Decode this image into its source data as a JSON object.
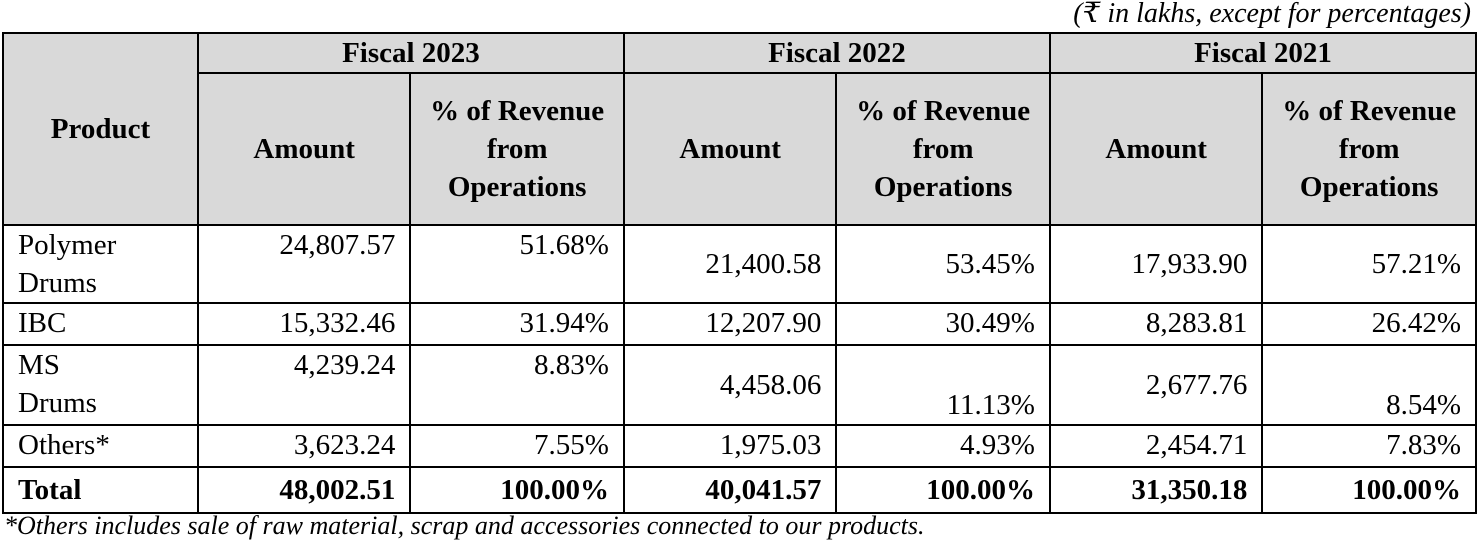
{
  "unit_note": "(₹ in lakhs, except for percentages)",
  "headers": {
    "product": "Product",
    "fiscal": [
      "Fiscal 2023",
      "Fiscal 2022",
      "Fiscal 2021"
    ],
    "amount": "Amount",
    "percent": "% of Revenue from Operations"
  },
  "rows": [
    {
      "product": "Polymer Drums",
      "values": [
        "24,807.57",
        "51.68%",
        "21,400.58",
        "53.45%",
        "17,933.90",
        "57.21%"
      ]
    },
    {
      "product": "IBC",
      "values": [
        "15,332.46",
        "31.94%",
        "12,207.90",
        "30.49%",
        "8,283.81",
        "26.42%"
      ]
    },
    {
      "product": "MS Drums",
      "values": [
        "4,239.24",
        "8.83%",
        "4,458.06",
        "11.13%",
        "2,677.76",
        "8.54%"
      ]
    },
    {
      "product": "Others*",
      "values": [
        "3,623.24",
        "7.55%",
        "1,975.03",
        "4.93%",
        "2,454.71",
        "7.83%"
      ]
    }
  ],
  "total": {
    "product": "Total",
    "values": [
      "48,002.51",
      "100.00%",
      "40,041.57",
      "100.00%",
      "31,350.18",
      "100.00%"
    ]
  },
  "footnote": "*Others includes sale of raw material, scrap and accessories connected to our products."
}
